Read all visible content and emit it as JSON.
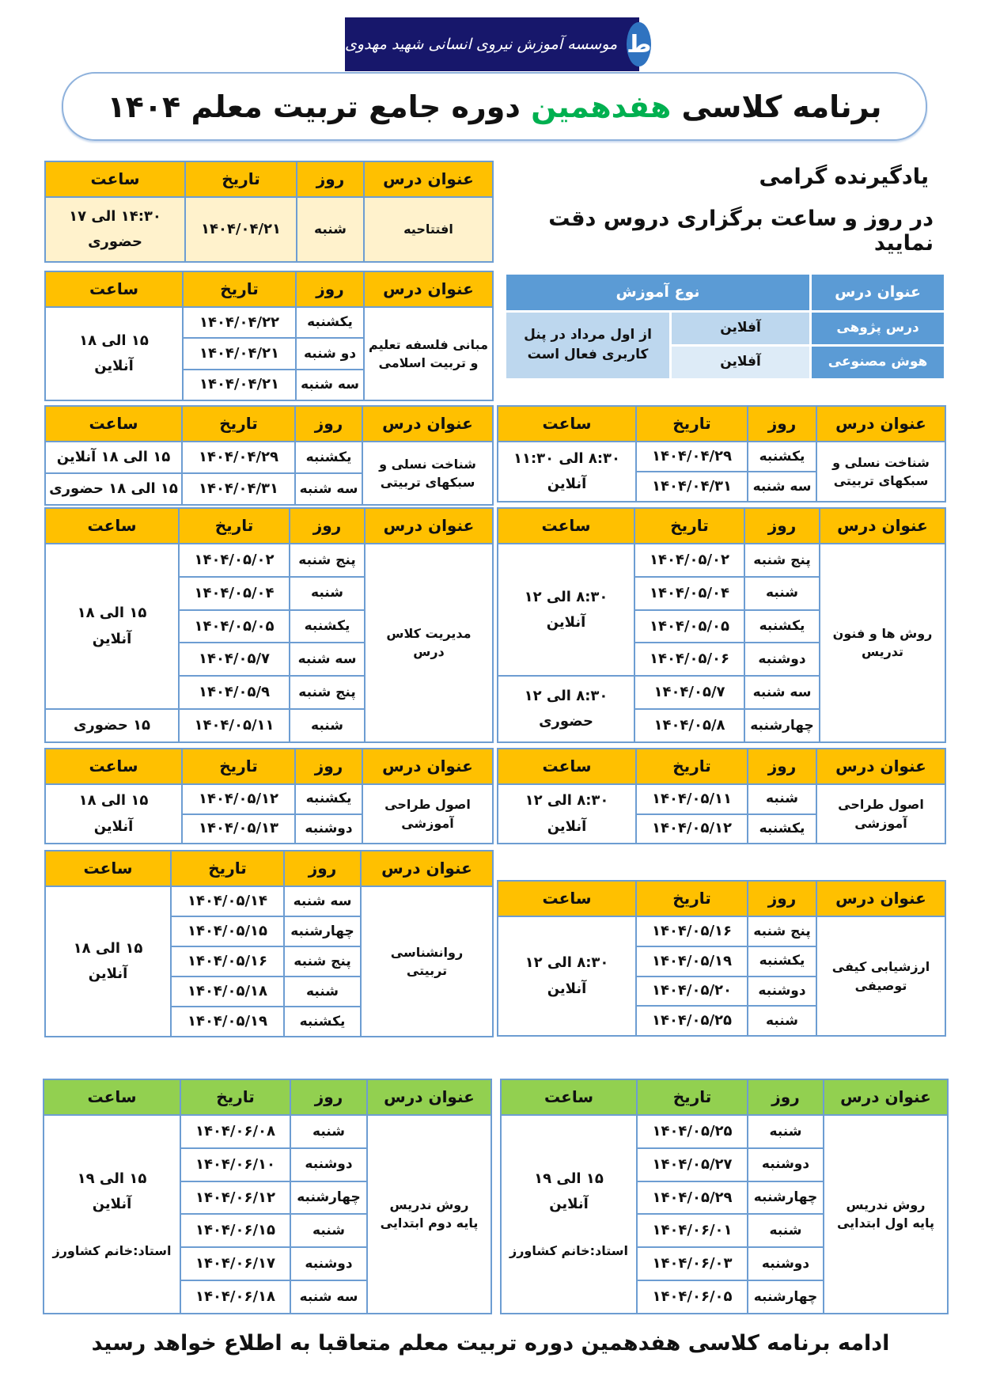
{
  "colors": {
    "header_yellow": "#FFC000",
    "opening_body": "#FFF2CC",
    "header_green": "#92D050",
    "border": "#6D9DD2",
    "blue_header": "#5B9BD5",
    "blue_light": "#BDD7EE",
    "blue_lighter": "#DDEBF7",
    "title_green": "#00B050",
    "logo_bg": "#17176B"
  },
  "logo": {
    "text": "موسسه آموزش نیروی انسانی شهید مهدوی",
    "icon": "bird-logo-icon"
  },
  "title": {
    "part1": "برنامه کلاسی ",
    "highlight": "هفدهمین",
    "part2": " دوره جامع تربیت معلم  ۱۴۰۴"
  },
  "reminder": {
    "line1": "یادگیرنده گرامی",
    "line2": "در روز و ساعت برگزاری دروس دقت نمایید"
  },
  "offline_table": {
    "header_course": "عنوان درس",
    "header_type": "نوع آموزش",
    "rows": [
      {
        "course": "درس پژوهی",
        "type": "آفلاین"
      },
      {
        "course": "هوش مصنوعی",
        "type": "آفلاین"
      }
    ],
    "note": [
      "از اول مرداد در پنل",
      "کاربری فعال است"
    ]
  },
  "headers": [
    "عنوان درس",
    "روز",
    "تاریخ",
    "ساعت"
  ],
  "tables": [
    {
      "id": "t1",
      "color": "yellow",
      "body": "cream",
      "course": [
        "افتتاحیه"
      ],
      "sessions": [
        {
          "day": "شنبه",
          "date": "۱۴۰۴/۰۴/۲۱"
        }
      ],
      "times": [
        {
          "span": 1,
          "lines": [
            "۱۴:۳۰ الی ۱۷",
            "حضوری"
          ]
        }
      ]
    },
    {
      "id": "t2",
      "color": "yellow",
      "course": [
        "مبانی فلسفه تعلیم",
        "و تربیت اسلامی"
      ],
      "sessions": [
        {
          "day": "یکشنبه",
          "date": "۱۴۰۴/۰۴/۲۲"
        },
        {
          "day": "دو شنبه",
          "date": "۱۴۰۴/۰۴/۲۱"
        },
        {
          "day": "سه شنبه",
          "date": "۱۴۰۴/۰۴/۲۱"
        }
      ],
      "times": [
        {
          "span": 3,
          "lines": [
            "۱۵ الی ۱۸",
            "آنلاین"
          ]
        }
      ]
    },
    {
      "id": "t3L",
      "color": "yellow",
      "course": [
        "شناخت نسلی و",
        "سبکهای تربیتی"
      ],
      "sessions": [
        {
          "day": "یکشنبه",
          "date": "۱۴۰۴/۰۴/۲۹"
        },
        {
          "day": "سه شنبه",
          "date": "۱۴۰۴/۰۴/۳۱"
        }
      ],
      "times": [
        {
          "span": 1,
          "lines": [
            "۱۵ الی ۱۸ آنلاین"
          ]
        },
        {
          "span": 1,
          "lines": [
            "۱۵ الی ۱۸ حضوری"
          ]
        }
      ]
    },
    {
      "id": "t3R",
      "color": "yellow",
      "course": [
        "شناخت نسلی و",
        "سبکهای تربیتی"
      ],
      "sessions": [
        {
          "day": "یکشنبه",
          "date": "۱۴۰۴/۰۴/۲۹"
        },
        {
          "day": "سه شنبه",
          "date": "۱۴۰۴/۰۴/۳۱"
        }
      ],
      "times": [
        {
          "span": 2,
          "lines": [
            "۸:۳۰ الی ۱۱:۳۰",
            "آنلاین"
          ]
        }
      ]
    },
    {
      "id": "t4L",
      "color": "yellow",
      "course": [
        "مدیریت کلاس",
        "درس"
      ],
      "sessions": [
        {
          "day": "پنج شنبه",
          "date": "۱۴۰۴/۰۵/۰۲"
        },
        {
          "day": "شنبه",
          "date": "۱۴۰۴/۰۵/۰۴"
        },
        {
          "day": "یکشنبه",
          "date": "۱۴۰۴/۰۵/۰۵"
        },
        {
          "day": "سه شنبه",
          "date": "۱۴۰۴/۰۵/۷"
        },
        {
          "day": "پنج شنبه",
          "date": "۱۴۰۴/۰۵/۹"
        },
        {
          "day": "شنبه",
          "date": "۱۴۰۴/۰۵/۱۱"
        }
      ],
      "times": [
        {
          "span": 5,
          "lines": [
            "۱۵ الی ۱۸",
            "آنلاین"
          ]
        },
        {
          "span": 1,
          "lines": [
            "۱۵ حضوری"
          ]
        }
      ]
    },
    {
      "id": "t4R",
      "color": "yellow",
      "course": [
        "روش ها و فنون",
        "تدریس"
      ],
      "sessions": [
        {
          "day": "پنج شنبه",
          "date": "۱۴۰۴/۰۵/۰۲"
        },
        {
          "day": "شنبه",
          "date": "۱۴۰۴/۰۵/۰۴"
        },
        {
          "day": "یکشنبه",
          "date": "۱۴۰۴/۰۵/۰۵"
        },
        {
          "day": "دوشنبه",
          "date": "۱۴۰۴/۰۵/۰۶"
        },
        {
          "day": "سه شنبه",
          "date": "۱۴۰۴/۰۵/۷"
        },
        {
          "day": "چهارشنبه",
          "date": "۱۴۰۴/۰۵/۸"
        }
      ],
      "times": [
        {
          "span": 4,
          "lines": [
            "۸:۳۰ الی ۱۲",
            "آنلاین"
          ]
        },
        {
          "span": 2,
          "lines": [
            "۸:۳۰ الی ۱۲",
            "حضوری"
          ]
        }
      ]
    },
    {
      "id": "t5L",
      "color": "yellow",
      "course": [
        "اصول طراحی",
        "آموزشی"
      ],
      "sessions": [
        {
          "day": "یکشنبه",
          "date": "۱۴۰۴/۰۵/۱۲"
        },
        {
          "day": "دوشنبه",
          "date": "۱۴۰۴/۰۵/۱۳"
        }
      ],
      "times": [
        {
          "span": 2,
          "lines": [
            "۱۵ الی ۱۸",
            "آنلاین"
          ]
        }
      ]
    },
    {
      "id": "t5R",
      "color": "yellow",
      "course": [
        "اصول طراحی",
        "آموزشی"
      ],
      "sessions": [
        {
          "day": "شنبه",
          "date": "۱۴۰۴/۰۵/۱۱"
        },
        {
          "day": "یکشنبه",
          "date": "۱۴۰۴/۰۵/۱۲"
        }
      ],
      "times": [
        {
          "span": 2,
          "lines": [
            "۸:۳۰ الی ۱۲",
            "آنلاین"
          ]
        }
      ]
    },
    {
      "id": "t6L",
      "color": "yellow",
      "course": [
        "روانشناسی",
        "تربیتی"
      ],
      "sessions": [
        {
          "day": "سه شنبه",
          "date": "۱۴۰۴/۰۵/۱۴"
        },
        {
          "day": "چهارشنبه",
          "date": "۱۴۰۴/۰۵/۱۵"
        },
        {
          "day": "پنج شنبه",
          "date": "۱۴۰۴/۰۵/۱۶"
        },
        {
          "day": "شنبه",
          "date": "۱۴۰۴/۰۵/۱۸"
        },
        {
          "day": "یکشنبه",
          "date": "۱۴۰۴/۰۵/۱۹"
        }
      ],
      "times": [
        {
          "span": 5,
          "lines": [
            "۱۵ الی ۱۸",
            "آنلاین"
          ]
        }
      ]
    },
    {
      "id": "t6R",
      "color": "yellow",
      "course": [
        "ارزشیابی کیفی",
        "توصیفی"
      ],
      "sessions": [
        {
          "day": "پنج شنبه",
          "date": "۱۴۰۴/۰۵/۱۶"
        },
        {
          "day": "یکشنبه",
          "date": "۱۴۰۴/۰۵/۱۹"
        },
        {
          "day": "دوشنبه",
          "date": "۱۴۰۴/۰۵/۲۰"
        },
        {
          "day": "شنبه",
          "date": "۱۴۰۴/۰۵/۲۵"
        }
      ],
      "times": [
        {
          "span": 4,
          "lines": [
            "۸:۳۰ الی ۱۲",
            "آنلاین"
          ]
        }
      ]
    },
    {
      "id": "t7L",
      "color": "green",
      "course": [
        "روش ندریس",
        "پایه دوم ابتدایی"
      ],
      "sessions": [
        {
          "day": "شنبه",
          "date": "۱۴۰۴/۰۶/۰۸"
        },
        {
          "day": "دوشنبه",
          "date": "۱۴۰۴/۰۶/۱۰"
        },
        {
          "day": "چهارشنبه",
          "date": "۱۴۰۴/۰۶/۱۲"
        },
        {
          "day": "شنبه",
          "date": "۱۴۰۴/۰۶/۱۵"
        },
        {
          "day": "دوشنبه",
          "date": "۱۴۰۴/۰۶/۱۷"
        },
        {
          "day": "سه شنبه",
          "date": "۱۴۰۴/۰۶/۱۸"
        }
      ],
      "times": [
        {
          "span": 6,
          "lines": [
            "۱۵ الی ۱۹",
            "آنلاین",
            "استاد:خانم کشاورز"
          ]
        }
      ]
    },
    {
      "id": "t7R",
      "color": "green",
      "course": [
        "روش ندریس",
        "پایه اول ابتدایی"
      ],
      "sessions": [
        {
          "day": "شنبه",
          "date": "۱۴۰۴/۰۵/۲۵"
        },
        {
          "day": "دوشنبه",
          "date": "۱۴۰۴/۰۵/۲۷"
        },
        {
          "day": "چهارشنبه",
          "date": "۱۴۰۴/۰۵/۲۹"
        },
        {
          "day": "شنبه",
          "date": "۱۴۰۴/۰۶/۰۱"
        },
        {
          "day": "دوشنبه",
          "date": "۱۴۰۴/۰۶/۰۳"
        },
        {
          "day": "چهارشنبه",
          "date": "۱۴۰۴/۰۶/۰۵"
        }
      ],
      "times": [
        {
          "span": 6,
          "lines": [
            "۱۵ الی ۱۹",
            "آنلاین",
            "استاد:خانم کشاورز"
          ]
        }
      ]
    }
  ],
  "footer": "ادامه برنامه کلاسی هفدهمین دوره تربیت معلم متعاقبا به اطلاع خواهد رسید"
}
